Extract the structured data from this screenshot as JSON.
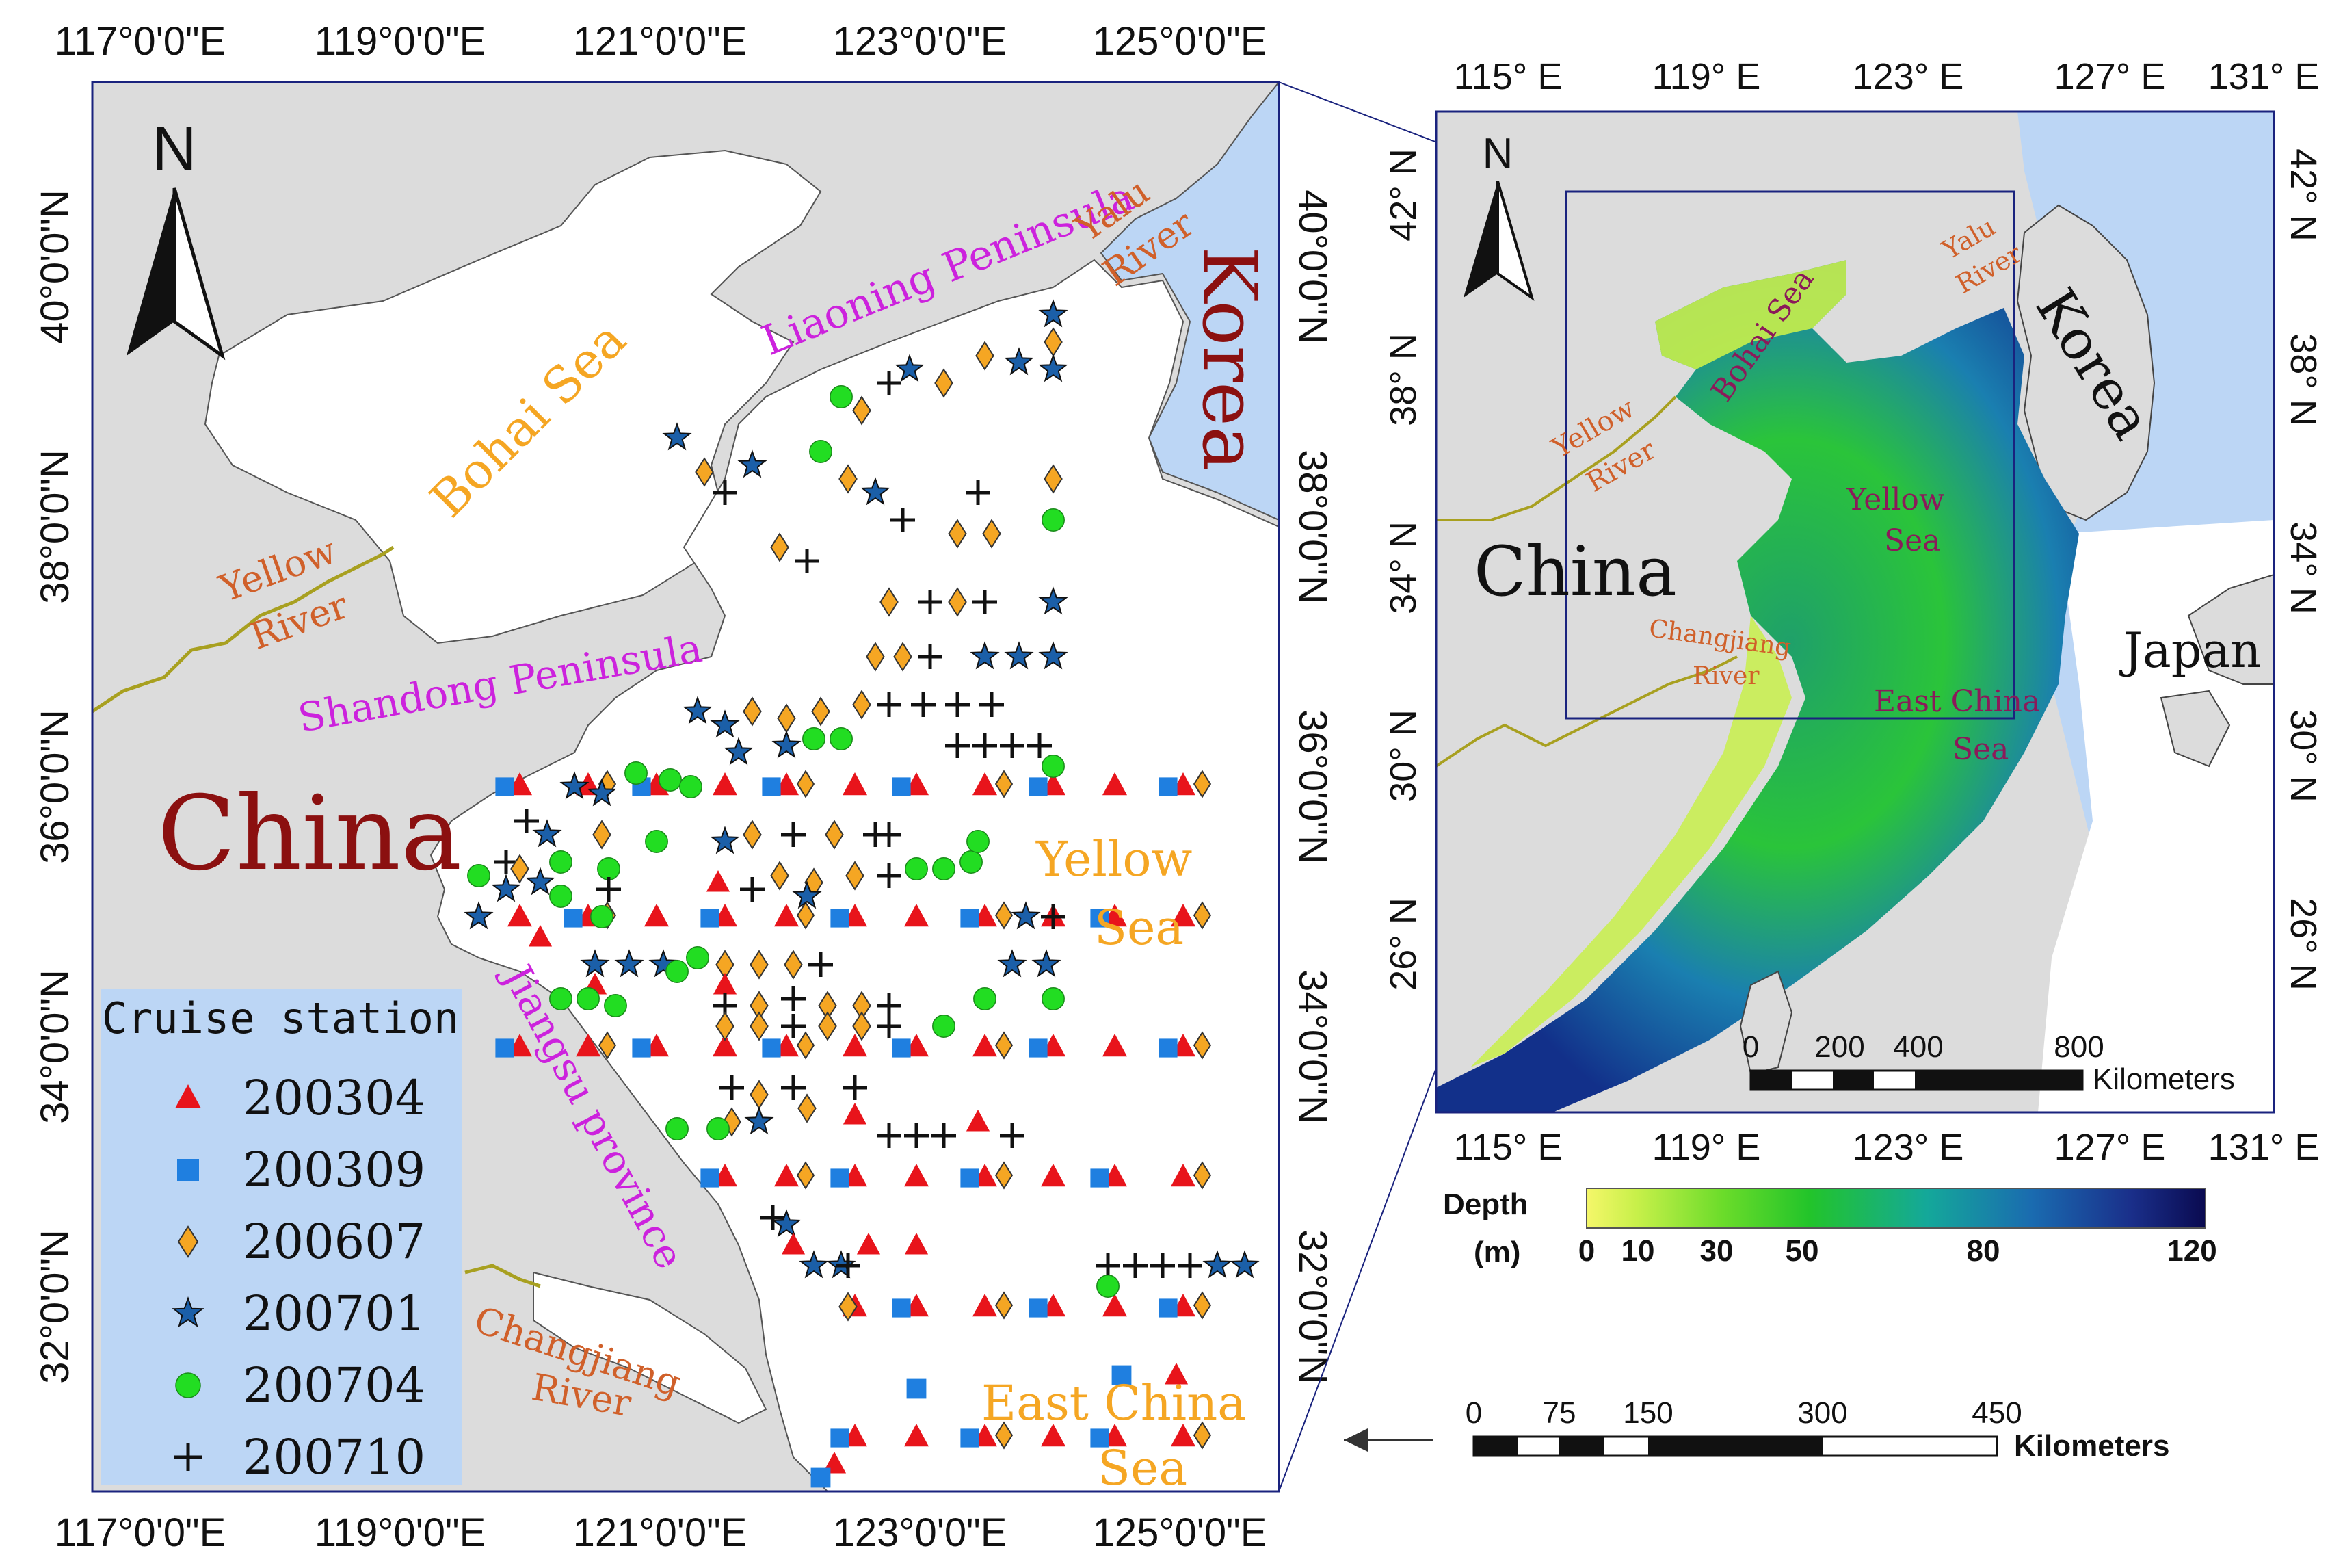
{
  "left_map": {
    "top_labels": [
      "117°0'0\"E",
      "119°0'0\"E",
      "121°0'0\"E",
      "123°0'0\"E",
      "125°0'0\"E"
    ],
    "bottom_labels": [
      "117°0'0\"E",
      "119°0'0\"E",
      "121°0'0\"E",
      "123°0'0\"E",
      "125°0'0\"E"
    ],
    "left_labels": [
      "40°0'0\"N",
      "38°0'0\"N",
      "36°0'0\"N",
      "34°0'0\"N",
      "32°0'0\"N"
    ],
    "right_labels": [
      "40°0'0\"N",
      "38°0'0\"N",
      "36°0'0\"N",
      "34°0'0\"N",
      "32°0'0\"N"
    ],
    "north": "N",
    "place_labels": {
      "bohai": "Bohai Sea",
      "liaoning": "Liaoning Peninsula",
      "yalu_1": "Yalu",
      "yalu_2": "River",
      "korea": "Korea",
      "yellow_river_1": "Yellow",
      "yellow_river_2": "River",
      "shandong": "Shandong Peninsula",
      "china": "China",
      "yellow_sea_1": "Yellow",
      "yellow_sea_2": "Sea",
      "jiangsu": "Jiangsu province",
      "changjiang_1": "Changjiang",
      "changjiang_2": "River",
      "ecs_1": "East China",
      "ecs_2": "Sea"
    },
    "legend": {
      "title": "Cruise station",
      "items": [
        {
          "label": "200304",
          "symbol": "triangle",
          "color": "#e8141b"
        },
        {
          "label": "200309",
          "symbol": "square",
          "color": "#1f7fe0"
        },
        {
          "label": "200607",
          "symbol": "diamond",
          "color": "#f5a623"
        },
        {
          "label": "200701",
          "symbol": "star",
          "color": "#1b5fa8"
        },
        {
          "label": "200704",
          "symbol": "circle",
          "color": "#22dd22"
        },
        {
          "label": "200710",
          "symbol": "cross",
          "color": "#111111"
        }
      ]
    }
  },
  "right_map": {
    "top_labels": [
      "115° E",
      "119° E",
      "123° E",
      "127° E",
      "131° E"
    ],
    "bottom_labels": [
      "115° E",
      "119° E",
      "123° E",
      "127° E",
      "131° E"
    ],
    "left_labels": [
      "42° N",
      "38° N",
      "34° N",
      "30° N",
      "26° N"
    ],
    "right_labels": [
      "42° N",
      "38° N",
      "34° N",
      "30° N",
      "26° N"
    ],
    "north": "N",
    "place_labels": {
      "bohai": "Bohai Sea",
      "yalu_1": "Yalu",
      "yalu_2": "River",
      "korea": "Korea",
      "yellow_river_1": "Yellow",
      "yellow_river_2": "River",
      "china": "China",
      "yellow_sea_1": "Yellow",
      "yellow_sea_2": "Sea",
      "changjiang_1": "Changjiang",
      "changjiang_2": "River",
      "ecs_1": "East China",
      "ecs_2": "Sea",
      "japan": "Japan"
    },
    "scale": {
      "ticks": [
        "0",
        "200",
        "400",
        "800"
      ],
      "unit": "Kilometers"
    }
  },
  "depth_legend": {
    "title_1": "Depth",
    "title_2": "(m)",
    "ticks": [
      "0",
      "10",
      "30",
      "50",
      "80",
      "120"
    ]
  },
  "bottom_scale": {
    "ticks": [
      "0",
      "75",
      "150",
      "300",
      "450"
    ],
    "unit": "Kilometers"
  },
  "colors": {
    "land": "#dcdcdc",
    "sea_white": "#ffffff",
    "korea_japan": "#bcd6f5",
    "frame": "#1a237e",
    "legend_bg": "#bcd6f5",
    "river": "#a8a020",
    "magenta": "#cc22dd",
    "orange": "#f5a623",
    "brown": "#d0602a",
    "dark_red": "#8b1010",
    "purple": "#8b1a5a"
  }
}
